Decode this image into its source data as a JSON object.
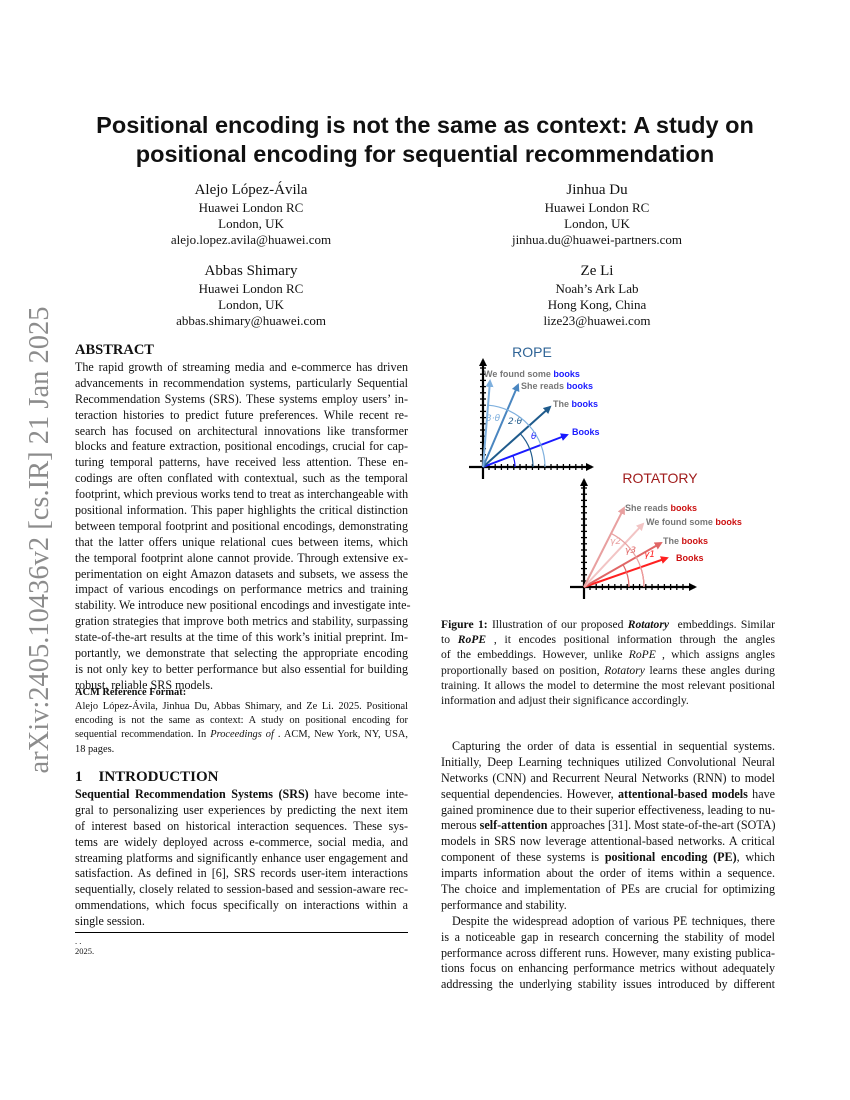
{
  "watermark": "arXiv:2405.10436v2  [cs.IR]  21 Jan 2025",
  "title": [
    "Positional encoding is not the same as context: A study on",
    "positional encoding for sequential recommendation"
  ],
  "authors": [
    {
      "name": "Alejo López-Ávila",
      "affiliation": "Huawei London RC",
      "location": "London, UK",
      "email": "alejo.lopez.avila@huawei.com"
    },
    {
      "name": "Jinhua Du",
      "affiliation": "Huawei London RC",
      "location": "London, UK",
      "email": "jinhua.du@huawei-partners.com"
    },
    {
      "name": "Abbas Shimary",
      "affiliation": "Huawei London RC",
      "location": "London, UK",
      "email": "abbas.shimary@huawei.com"
    },
    {
      "name": "Ze Li",
      "affiliation": "Noah’s Ark Lab",
      "location": "Hong Kong, China",
      "email": "lize23@huawei.com"
    }
  ],
  "abstract": {
    "heading": "ABSTRACT",
    "paragraphs": [
      {
        "indent": false,
        "lines": [
          "The rapid growth of streaming media and e-commerce has driven",
          "advancements in recommendation systems, particularly Sequential",
          "Recommendation Systems (SRS). These systems employ users’ in-",
          "teraction histories to predict future preferences. While recent re-",
          "search has focused on architectural innovations like transformer",
          "blocks and feature extraction, positional encodings, crucial for cap-",
          "turing temporal patterns, have received less attention. These en-",
          "codings are often conflated with contextual, such as the temporal",
          "footprint, which previous works tend to treat as interchangeable with",
          "positional information. This paper highlights the critical distinction",
          "between temporal footprint and positional encodings, demonstrating",
          "that the latter offers unique relational cues between items, which",
          "the temporal footprint alone cannot provide. Through extensive ex-",
          "perimentation on eight Amazon datasets and subsets, we assess the",
          "impact of various encodings on performance metrics and training",
          "stability. We introduce new positional encodings and investigate inte-",
          "gration strategies that improve both metrics and stability, surpassing",
          "state-of-the-art results at the time of this work’s initial preprint. Im-",
          "portantly, we demonstrate that selecting the appropriate encoding",
          "is not only key to better performance but also essential for building",
          "robust, reliable SRS models."
        ]
      }
    ]
  },
  "acm_reference": {
    "heading": "ACM Reference Format:",
    "paragraphs": [
      {
        "indent": false,
        "lines": [
          "Alejo López-Ávila, Jinhua Du, Abbas Shimary, and Ze Li. 2025. Positional",
          "encoding is not the same as context: A study on positional encoding for",
          [
            {
              "t": "sequential recommendation. In "
            },
            {
              "t": "Proceedings of",
              "s": "i"
            },
            {
              "t": " . ACM, New York, NY, USA,"
            }
          ],
          "18 pages."
        ]
      }
    ]
  },
  "introduction": {
    "number": "1",
    "heading": "INTRODUCTION",
    "paragraphs": [
      {
        "indent": false,
        "lines": [
          [
            {
              "t": "Sequential Recommendation Systems (SRS)",
              "s": "b"
            },
            {
              "t": " have become inte-"
            }
          ],
          "gral to personalizing user experiences by predicting the next item",
          "of interest based on historical interaction sequences. These sys-",
          "tems are widely deployed across e-commerce, social media, and",
          "streaming platforms and significantly enhance user engagement and",
          "satisfaction. As defined in [6], SRS records user-item interactions",
          "sequentially, closely related to session-based and session-aware rec-",
          "ommendations, which focus specifically on interactions within a",
          "single session."
        ]
      }
    ]
  },
  "footnote": {
    "line1": ". .",
    "line2": "2025."
  },
  "figure": {
    "rope": {
      "title": "ROPE",
      "color": "#2f6496",
      "vectors": [
        {
          "prefix": "",
          "word": "Books",
          "angle_label": "θ"
        },
        {
          "prefix": "The ",
          "word": "books",
          "angle_label": "2·θ"
        },
        {
          "prefix": "She reads ",
          "word": "books",
          "angle_label": ""
        },
        {
          "prefix": "We found some  ",
          "word": "books",
          "angle_label": "3·θ"
        }
      ]
    },
    "rotatory": {
      "title": "ROTATORY",
      "color": "#a01c1c",
      "vectors": [
        {
          "prefix": "",
          "word": "Books",
          "angle_label": "γ1"
        },
        {
          "prefix": "The ",
          "word": "books",
          "angle_label": "γ3"
        },
        {
          "prefix": "We found some  ",
          "word": "books",
          "angle_label": ""
        },
        {
          "prefix": "She reads ",
          "word": "books",
          "angle_label": "γ2"
        }
      ]
    }
  },
  "caption": {
    "paragraphs": [
      {
        "indent": false,
        "lines": [
          [
            {
              "t": "Figure 1:",
              "s": "b"
            },
            {
              "t": " Illustration of our proposed "
            },
            {
              "t": "Rotatory",
              "s": "bi"
            },
            {
              "t": "  embeddings. Similar"
            }
          ],
          [
            {
              "t": "to "
            },
            {
              "t": "RoPE",
              "s": "bi"
            },
            {
              "t": " , it encodes positional information through the angles"
            }
          ],
          [
            {
              "t": "of the embeddings. However, unlike "
            },
            {
              "t": "RoPE",
              "s": "i"
            },
            {
              "t": " , which assigns angles"
            }
          ],
          [
            {
              "t": "proportionally based on position, "
            },
            {
              "t": "Rotatory",
              "s": "i"
            },
            {
              "t": " learns these angles during"
            }
          ],
          "training. It allows the model to determine the most relevant positional",
          "information and adjust their significance accordingly."
        ]
      }
    ]
  },
  "right_body": {
    "paragraphs": [
      {
        "indent": true,
        "lines": [
          "Capturing the order of data is essential in sequential systems.",
          "Initially, Deep Learning techniques utilized Convolutional Neural",
          "Networks (CNN) and Recurrent Neural Networks (RNN) to model",
          [
            {
              "t": "sequential dependencies. However, "
            },
            {
              "t": "attentional-based models",
              "s": "b"
            },
            {
              "t": " have"
            }
          ],
          "gained prominence due to their superior effectiveness, leading to nu-",
          [
            {
              "t": "merous "
            },
            {
              "t": "self-attention",
              "s": "b"
            },
            {
              "t": " approaches [31]. Most state-of-the-art (SOTA)"
            }
          ],
          "models in SRS now leverage attentional-based networks. A critical",
          [
            {
              "t": "component of these systems is "
            },
            {
              "t": "positional encoding (PE)",
              "s": "b"
            },
            {
              "t": ", which"
            }
          ],
          "imparts information about the order of items within a sequence.",
          "The choice and implementation of PEs are crucial for optimizing",
          "performance and stability."
        ]
      },
      {
        "indent": true,
        "lines": [
          "Despite the widespread adoption of various PE techniques, there",
          "is a noticeable gap in research concerning the stability of model",
          "performance across different runs. However, many existing publica-",
          "tions focus on enhancing performance metrics without adequately",
          "addressing the underlying stability issues introduced by different"
        ],
        "continues": true
      }
    ]
  }
}
